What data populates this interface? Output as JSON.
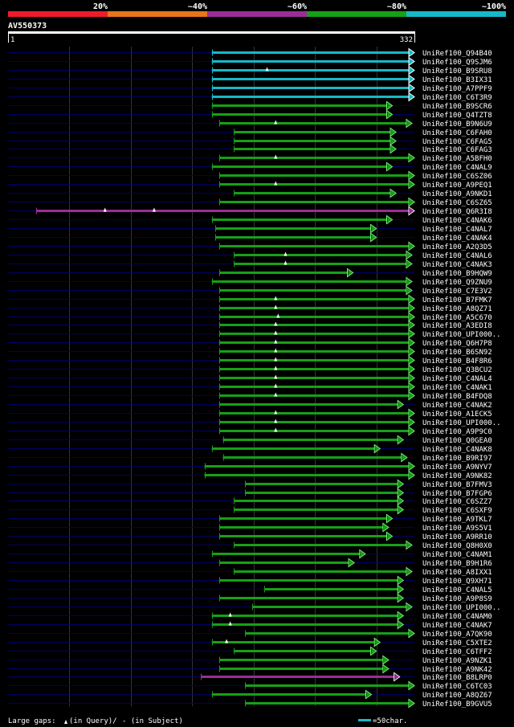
{
  "legend": {
    "identity_labels": [
      "20%",
      "~40%",
      "~60%",
      "~80%",
      "~100%"
    ],
    "identity_colors": [
      "#ee1c2b",
      "#e9741b",
      "#9b2d96",
      "#17a017",
      "#16b9c8"
    ]
  },
  "query": {
    "name": "AV550373",
    "start_label": "1",
    "end_label": "332",
    "length": 332
  },
  "colors": {
    "background": "#000000",
    "grid": "#333333",
    "blank_line": "#000066",
    "ruler": "#ffffff"
  },
  "footer": {
    "gaps_label": "Large gaps:",
    "query_gap_label": "(in Query)/",
    "subject_gap_label": "- (in Subject)",
    "scale_label": "=50char."
  },
  "hits": [
    {
      "name": "UniRef100_Q94B40",
      "start": 167,
      "end": 332,
      "color": "cyan",
      "marks": [],
      "arrow": "filled"
    },
    {
      "name": "UniRef100_Q9SJM6",
      "start": 167,
      "end": 332,
      "color": "cyan",
      "marks": [],
      "arrow": "filled"
    },
    {
      "name": "UniRef100_B9SRU8",
      "start": 167,
      "end": 332,
      "color": "cyan",
      "marks": [
        212
      ],
      "arrow": "filled"
    },
    {
      "name": "UniRef100_B3IX31",
      "start": 167,
      "end": 332,
      "color": "cyan",
      "marks": [],
      "arrow": "filled"
    },
    {
      "name": "UniRef100_A7PPF9",
      "start": 167,
      "end": 332,
      "color": "cyan",
      "marks": [],
      "arrow": "filled"
    },
    {
      "name": "UniRef100_C6T3R9",
      "start": 167,
      "end": 332,
      "color": "cyan",
      "marks": [],
      "arrow": "filled"
    },
    {
      "name": "UniRef100_B9SCR6",
      "start": 167,
      "end": 314,
      "color": "green",
      "marks": [],
      "arrow": "open"
    },
    {
      "name": "UniRef100_Q4TZT8",
      "start": 167,
      "end": 314,
      "color": "green",
      "marks": [],
      "arrow": "open"
    },
    {
      "name": "UniRef100_B9N6U9",
      "start": 173,
      "end": 330,
      "color": "green",
      "marks": [
        219
      ],
      "arrow": "open"
    },
    {
      "name": "UniRef100_C6FAH0",
      "start": 185,
      "end": 317,
      "color": "green",
      "marks": [],
      "arrow": "open"
    },
    {
      "name": "UniRef100_C6FAG5",
      "start": 185,
      "end": 317,
      "color": "green",
      "marks": [],
      "arrow": "open"
    },
    {
      "name": "UniRef100_C6FAG3",
      "start": 185,
      "end": 317,
      "color": "green",
      "marks": [],
      "arrow": "open"
    },
    {
      "name": "UniRef100_A5BFH0",
      "start": 173,
      "end": 332,
      "color": "green",
      "marks": [
        219
      ],
      "arrow": "open"
    },
    {
      "name": "UniRef100_C4NAL9",
      "start": 167,
      "end": 314,
      "color": "green",
      "marks": [],
      "arrow": "open"
    },
    {
      "name": "UniRef100_C6SZ06",
      "start": 173,
      "end": 332,
      "color": "green",
      "marks": [],
      "arrow": "open"
    },
    {
      "name": "UniRef100_A9PEQ1",
      "start": 173,
      "end": 332,
      "color": "green",
      "marks": [
        219
      ],
      "arrow": "open"
    },
    {
      "name": "UniRef100_A9NKD1",
      "start": 185,
      "end": 317,
      "color": "green",
      "marks": [],
      "arrow": "open"
    },
    {
      "name": "UniRef100_C6SZ65",
      "start": 173,
      "end": 332,
      "color": "green",
      "marks": [],
      "arrow": "open"
    },
    {
      "name": "UniRef100_Q6R3I8",
      "start": 24,
      "end": 332,
      "color": "magenta",
      "marks": [
        80,
        120
      ],
      "arrow": "open"
    },
    {
      "name": "UniRef100_C4NAK6",
      "start": 167,
      "end": 314,
      "color": "green",
      "marks": [],
      "arrow": "open"
    },
    {
      "name": "UniRef100_C4NAL7",
      "start": 170,
      "end": 301,
      "color": "green",
      "marks": [],
      "arrow": "open"
    },
    {
      "name": "UniRef100_C4NAK4",
      "start": 170,
      "end": 301,
      "color": "green",
      "marks": [],
      "arrow": "open"
    },
    {
      "name": "UniRef100_A2Q3D5",
      "start": 173,
      "end": 332,
      "color": "green",
      "marks": [],
      "arrow": "open"
    },
    {
      "name": "UniRef100_C4NAL6",
      "start": 185,
      "end": 330,
      "color": "green",
      "marks": [
        227
      ],
      "arrow": "open"
    },
    {
      "name": "UniRef100_C4NAK3",
      "start": 185,
      "end": 330,
      "color": "green",
      "marks": [
        227
      ],
      "arrow": "open"
    },
    {
      "name": "UniRef100_B9HQW9",
      "start": 173,
      "end": 282,
      "color": "green",
      "marks": [],
      "arrow": "open"
    },
    {
      "name": "UniRef100_Q9ZNU9",
      "start": 167,
      "end": 330,
      "color": "green",
      "marks": [],
      "arrow": "open"
    },
    {
      "name": "UniRef100_C7E3V2",
      "start": 173,
      "end": 330,
      "color": "green",
      "marks": [],
      "arrow": "open"
    },
    {
      "name": "UniRef100_B7FMK7",
      "start": 173,
      "end": 332,
      "color": "green",
      "marks": [
        219
      ],
      "arrow": "open"
    },
    {
      "name": "UniRef100_A8QZ71",
      "start": 173,
      "end": 332,
      "color": "green",
      "marks": [
        219
      ],
      "arrow": "open"
    },
    {
      "name": "UniRef100_A5C670",
      "start": 173,
      "end": 332,
      "color": "green",
      "marks": [
        221
      ],
      "arrow": "open"
    },
    {
      "name": "UniRef100_A3EDI8",
      "start": 173,
      "end": 332,
      "color": "green",
      "marks": [
        219
      ],
      "arrow": "open"
    },
    {
      "name": "UniRef100_UPI000..",
      "start": 173,
      "end": 332,
      "color": "green",
      "marks": [
        219
      ],
      "arrow": "open"
    },
    {
      "name": "UniRef100_Q6H7P8",
      "start": 173,
      "end": 332,
      "color": "green",
      "marks": [
        219
      ],
      "arrow": "open"
    },
    {
      "name": "UniRef100_B6SN92",
      "start": 173,
      "end": 332,
      "color": "green",
      "marks": [
        219
      ],
      "arrow": "open"
    },
    {
      "name": "UniRef100_B4F8R6",
      "start": 173,
      "end": 332,
      "color": "green",
      "marks": [
        219
      ],
      "arrow": "open"
    },
    {
      "name": "UniRef100_Q3BCU2",
      "start": 173,
      "end": 332,
      "color": "green",
      "marks": [
        219
      ],
      "arrow": "open"
    },
    {
      "name": "UniRef100_C4NAL4",
      "start": 173,
      "end": 332,
      "color": "green",
      "marks": [
        219
      ],
      "arrow": "open"
    },
    {
      "name": "UniRef100_C4NAK1",
      "start": 173,
      "end": 332,
      "color": "green",
      "marks": [
        219
      ],
      "arrow": "open"
    },
    {
      "name": "UniRef100_B4FDQ8",
      "start": 173,
      "end": 332,
      "color": "green",
      "marks": [
        219
      ],
      "arrow": "open"
    },
    {
      "name": "UniRef100_C4NAK2",
      "start": 173,
      "end": 323,
      "color": "green",
      "marks": [],
      "arrow": "open"
    },
    {
      "name": "UniRef100_A1ECK5",
      "start": 173,
      "end": 332,
      "color": "green",
      "marks": [
        219
      ],
      "arrow": "open"
    },
    {
      "name": "UniRef100_UPI000..",
      "start": 173,
      "end": 332,
      "color": "green",
      "marks": [
        219
      ],
      "arrow": "open"
    },
    {
      "name": "UniRef100_A9P9C0",
      "start": 173,
      "end": 332,
      "color": "green",
      "marks": [
        219
      ],
      "arrow": "open"
    },
    {
      "name": "UniRef100_Q0GEA0",
      "start": 176,
      "end": 323,
      "color": "green",
      "marks": [],
      "arrow": "open"
    },
    {
      "name": "UniRef100_C4NAK8",
      "start": 167,
      "end": 304,
      "color": "green",
      "marks": [],
      "arrow": "open"
    },
    {
      "name": "UniRef100_B9RI97",
      "start": 176,
      "end": 326,
      "color": "green",
      "marks": [],
      "arrow": "open"
    },
    {
      "name": "UniRef100_A9NYV7",
      "start": 161,
      "end": 332,
      "color": "green",
      "marks": [],
      "arrow": "open"
    },
    {
      "name": "UniRef100_A9NK82",
      "start": 161,
      "end": 332,
      "color": "green",
      "marks": [],
      "arrow": "open"
    },
    {
      "name": "UniRef100_B7FMV3",
      "start": 194,
      "end": 323,
      "color": "green",
      "marks": [],
      "arrow": "open"
    },
    {
      "name": "UniRef100_B7FGP6",
      "start": 194,
      "end": 323,
      "color": "green",
      "marks": [],
      "arrow": "open"
    },
    {
      "name": "UniRef100_C6SZZ7",
      "start": 185,
      "end": 323,
      "color": "green",
      "marks": [],
      "arrow": "open"
    },
    {
      "name": "UniRef100_C6SXF9",
      "start": 185,
      "end": 323,
      "color": "green",
      "marks": [],
      "arrow": "open"
    },
    {
      "name": "UniRef100_A9TKL7",
      "start": 173,
      "end": 314,
      "color": "green",
      "marks": [],
      "arrow": "open"
    },
    {
      "name": "UniRef100_A9S5V1",
      "start": 173,
      "end": 311,
      "color": "green",
      "marks": [],
      "arrow": "open"
    },
    {
      "name": "UniRef100_A9RR10",
      "start": 173,
      "end": 314,
      "color": "green",
      "marks": [],
      "arrow": "open"
    },
    {
      "name": "UniRef100_Q8H0X0",
      "start": 185,
      "end": 330,
      "color": "green",
      "marks": [],
      "arrow": "open"
    },
    {
      "name": "UniRef100_C4NAM1",
      "start": 167,
      "end": 292,
      "color": "green",
      "marks": [],
      "arrow": "open"
    },
    {
      "name": "UniRef100_B9H1R6",
      "start": 173,
      "end": 283,
      "color": "green",
      "marks": [],
      "arrow": "open"
    },
    {
      "name": "UniRef100_A8IXX1",
      "start": 185,
      "end": 330,
      "color": "green",
      "marks": [],
      "arrow": "open"
    },
    {
      "name": "UniRef100_Q9XH71",
      "start": 173,
      "end": 323,
      "color": "green",
      "marks": [],
      "arrow": "open"
    },
    {
      "name": "UniRef100_C4NAL5",
      "start": 210,
      "end": 323,
      "color": "green",
      "marks": [],
      "arrow": "open"
    },
    {
      "name": "UniRef100_A9P8S9",
      "start": 173,
      "end": 323,
      "color": "green",
      "marks": [],
      "arrow": "open"
    },
    {
      "name": "UniRef100_UPI000..",
      "start": 200,
      "end": 330,
      "color": "green",
      "marks": [],
      "arrow": "open"
    },
    {
      "name": "UniRef100_C4NAM0",
      "start": 167,
      "end": 323,
      "color": "green",
      "marks": [
        182
      ],
      "arrow": "open"
    },
    {
      "name": "UniRef100_C4NAK7",
      "start": 167,
      "end": 323,
      "color": "green",
      "marks": [
        182
      ],
      "arrow": "open"
    },
    {
      "name": "UniRef100_A7QK90",
      "start": 194,
      "end": 332,
      "color": "green",
      "marks": [],
      "arrow": "open"
    },
    {
      "name": "UniRef100_C5XTE2",
      "start": 167,
      "end": 304,
      "color": "green",
      "marks": [
        179
      ],
      "arrow": "open"
    },
    {
      "name": "UniRef100_C6TFF2",
      "start": 185,
      "end": 301,
      "color": "green",
      "marks": [],
      "arrow": "open"
    },
    {
      "name": "UniRef100_A9NZK1",
      "start": 173,
      "end": 311,
      "color": "green",
      "marks": [],
      "arrow": "open"
    },
    {
      "name": "UniRef100_A9NK42",
      "start": 173,
      "end": 311,
      "color": "green",
      "marks": [],
      "arrow": "open"
    },
    {
      "name": "UniRef100_B8LRP0",
      "start": 158,
      "end": 320,
      "color": "magenta",
      "marks": [],
      "arrow": "open"
    },
    {
      "name": "UniRef100_C6TC03",
      "start": 194,
      "end": 332,
      "color": "green",
      "marks": [],
      "arrow": "open"
    },
    {
      "name": "UniRef100_A8QZ67",
      "start": 167,
      "end": 297,
      "color": "green",
      "marks": [],
      "arrow": "open"
    },
    {
      "name": "UniRef100_B9GVU5",
      "start": 194,
      "end": 332,
      "color": "green",
      "marks": [],
      "arrow": "open"
    }
  ]
}
